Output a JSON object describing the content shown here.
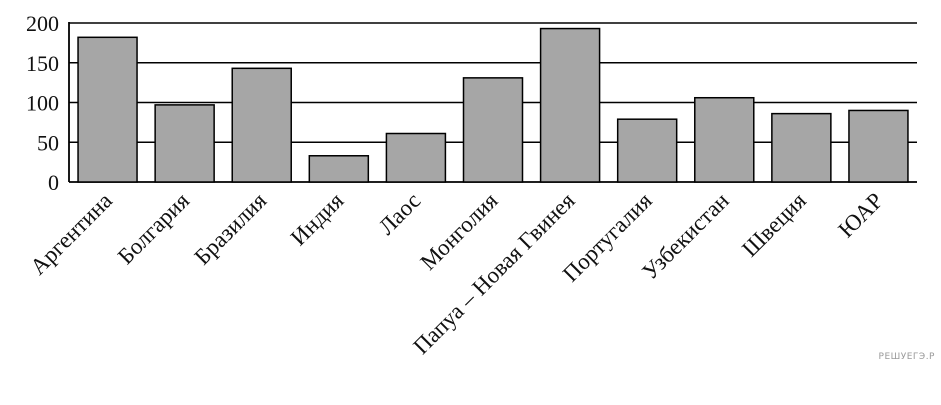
{
  "chart_data": {
    "type": "bar",
    "categories": [
      "Аргентина",
      "Болгария",
      "Бразилия",
      "Индия",
      "Лаос",
      "Монголия",
      "Папуа – Новая Гвинея",
      "Португалия",
      "Узбекистан",
      "Швеция",
      "ЮАР"
    ],
    "values": [
      182,
      97,
      143,
      33,
      61,
      131,
      193,
      79,
      106,
      86,
      90
    ],
    "ylim": [
      0,
      200
    ],
    "yticks": [
      0,
      50,
      100,
      150,
      200
    ],
    "grid": true,
    "bar_color": "#a6a6a6",
    "edge_color": "#000000"
  },
  "watermark": "РЕШУЕГЭ.Р"
}
